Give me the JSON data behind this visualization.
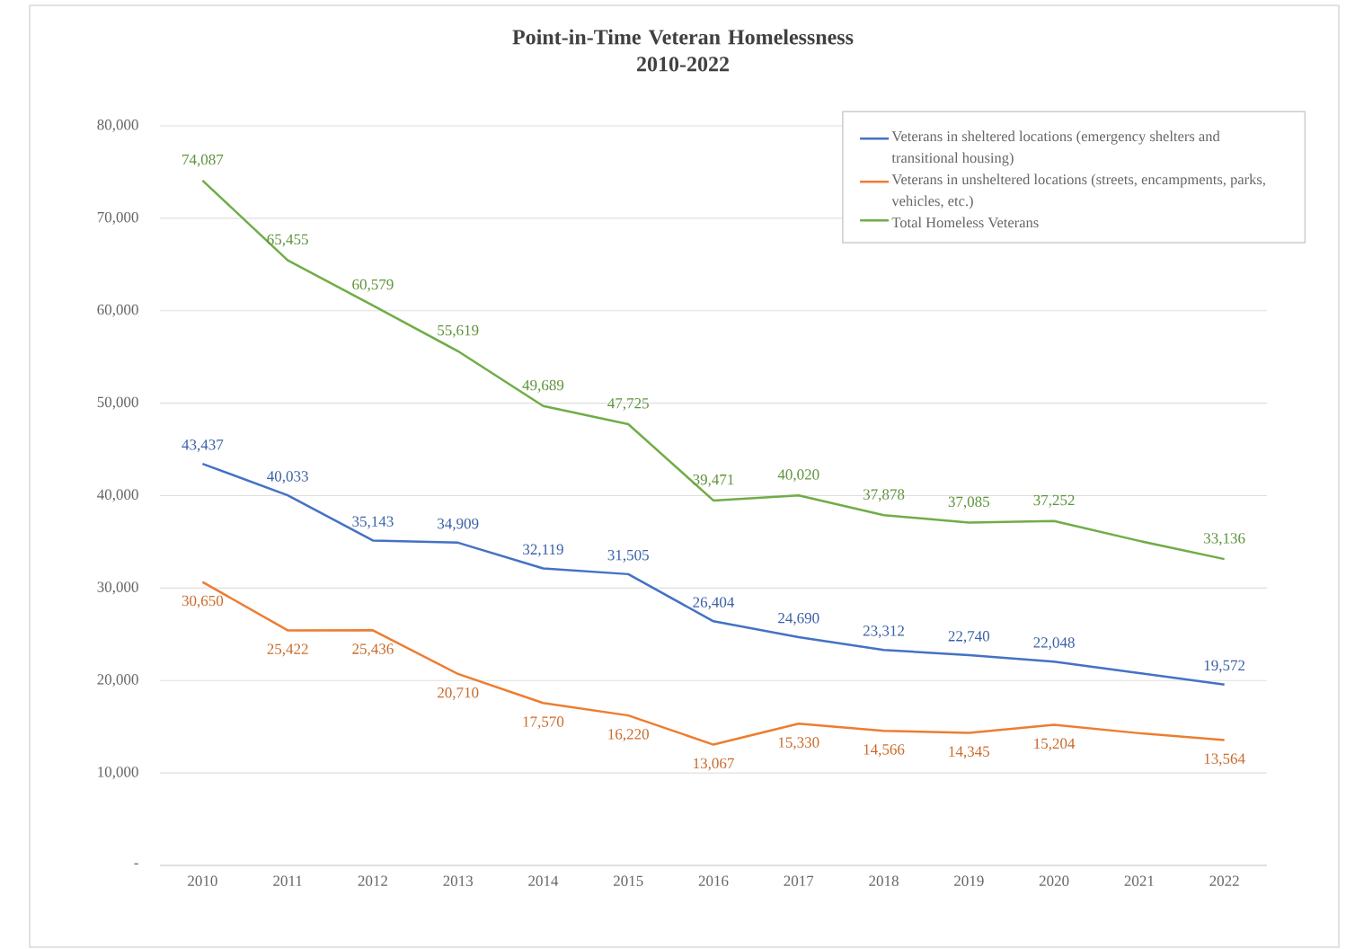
{
  "chart_data": {
    "type": "line",
    "title": "Point-in-Time Veteran Homelessness\n2010-2022",
    "categories": [
      "2010",
      "2011",
      "2012",
      "2013",
      "2014",
      "2015",
      "2016",
      "2017",
      "2018",
      "2019",
      "2020",
      "2021",
      "2022"
    ],
    "series": [
      {
        "name": "Veterans in sheltered locations (emergency shelters and transitional housing)",
        "color": "#4472c4",
        "values": [
          43437,
          40033,
          35143,
          34909,
          32119,
          31505,
          26404,
          24690,
          23312,
          22740,
          22048,
          20800,
          19572
        ],
        "value_labels": [
          "43,437",
          "40,033",
          "35,143",
          "34,909",
          "32,119",
          "31,505",
          "26,404",
          "24,690",
          "23,312",
          "22,740",
          "22,048",
          null,
          "19,572"
        ]
      },
      {
        "name": "Veterans in unsheltered locations (streets, encampments, parks, vehicles, etc.)",
        "color": "#ed7d31",
        "values": [
          30650,
          25422,
          25436,
          20710,
          17570,
          16220,
          13067,
          15330,
          14566,
          14345,
          15204,
          14300,
          13564
        ],
        "value_labels": [
          "30,650",
          "25,422",
          "25,436",
          "20,710",
          "17,570",
          "16,220",
          "13,067",
          "15,330",
          "14,566",
          "14,345",
          "15,204",
          null,
          "13,564"
        ]
      },
      {
        "name": "Total Homeless Veterans",
        "color": "#70ad47",
        "values": [
          74087,
          65455,
          60579,
          55619,
          49689,
          47725,
          39471,
          40020,
          37878,
          37085,
          37252,
          35100,
          33136
        ],
        "value_labels": [
          "74,087",
          "65,455",
          "60,579",
          "55,619",
          "49,689",
          "47,725",
          "39,471",
          "40,020",
          "37,878",
          "37,085",
          "37,252",
          null,
          "33,136"
        ]
      }
    ],
    "ylim": [
      0,
      80000
    ],
    "yticks": [
      {
        "value": 0,
        "label": "-"
      },
      {
        "value": 10000,
        "label": "10,000"
      },
      {
        "value": 20000,
        "label": "20,000"
      },
      {
        "value": 30000,
        "label": "30,000"
      },
      {
        "value": 40000,
        "label": "40,000"
      },
      {
        "value": 50000,
        "label": "50,000"
      },
      {
        "value": 60000,
        "label": "60,000"
      },
      {
        "value": 70000,
        "label": "70,000"
      },
      {
        "value": 80000,
        "label": "80,000"
      }
    ],
    "grid": "y",
    "legend": "top right",
    "marker": "none",
    "line_style": "solid"
  }
}
